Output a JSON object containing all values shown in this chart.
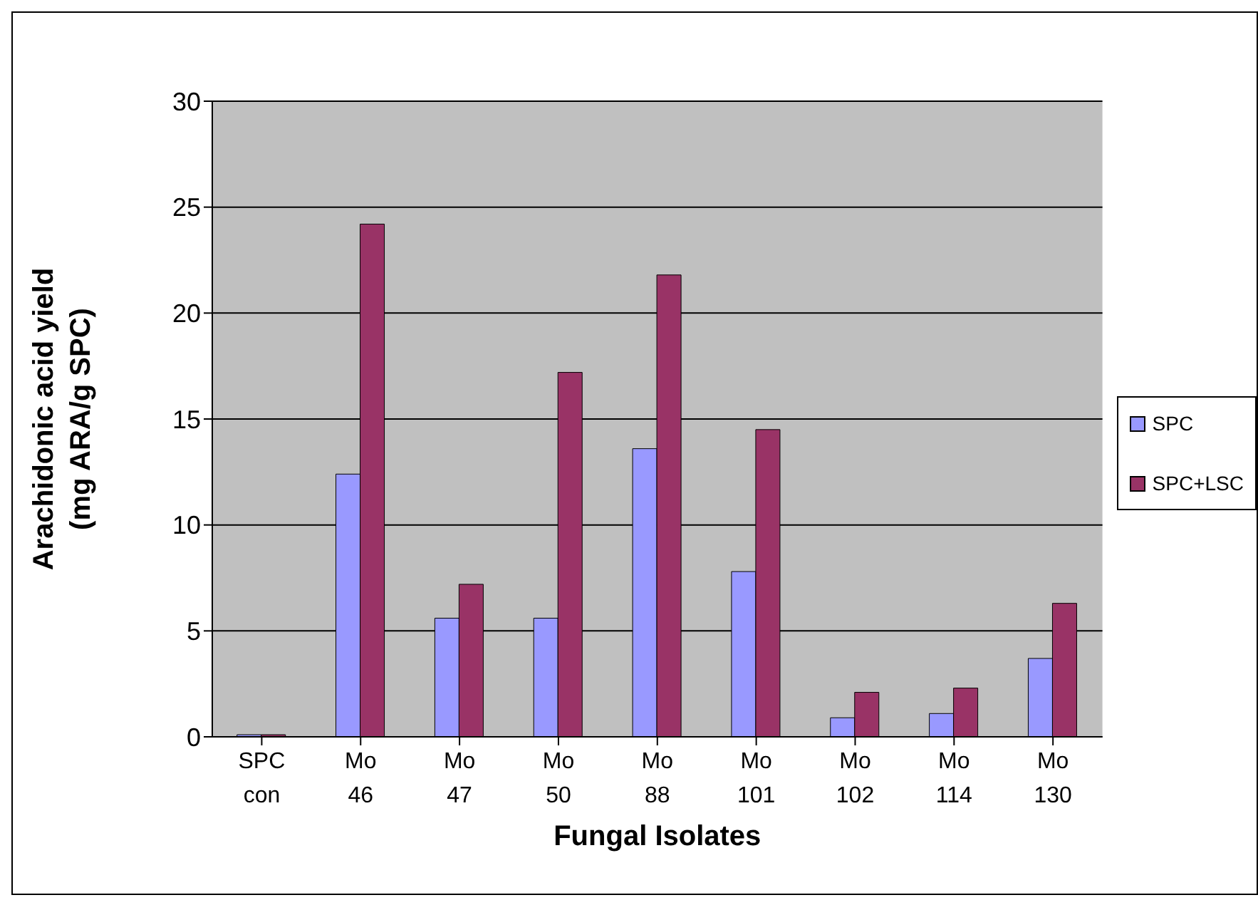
{
  "chart_data": {
    "type": "bar",
    "xlabel": "Fungal Isolates",
    "ylabel": "Arachidonic acid yield (mg ARA/g SPC)",
    "categories": [
      "SPC con",
      "Mo 46",
      "Mo 47",
      "Mo 50",
      "Mo 88",
      "Mo 101",
      "Mo 102",
      "Mo 114",
      "Mo 130"
    ],
    "series": [
      {
        "name": "SPC",
        "color": "#9999ff",
        "values": [
          0.1,
          12.4,
          5.6,
          5.6,
          13.6,
          7.8,
          0.9,
          1.1,
          3.7
        ]
      },
      {
        "name": "SPC+LSC",
        "color": "#993366",
        "values": [
          0.1,
          24.2,
          7.2,
          17.2,
          21.8,
          14.5,
          2.1,
          2.3,
          6.3
        ]
      }
    ],
    "ylim": [
      0,
      30
    ],
    "yticks": [
      0,
      5,
      10,
      15,
      20,
      25,
      30
    ],
    "grid": "y",
    "legend": "right"
  }
}
